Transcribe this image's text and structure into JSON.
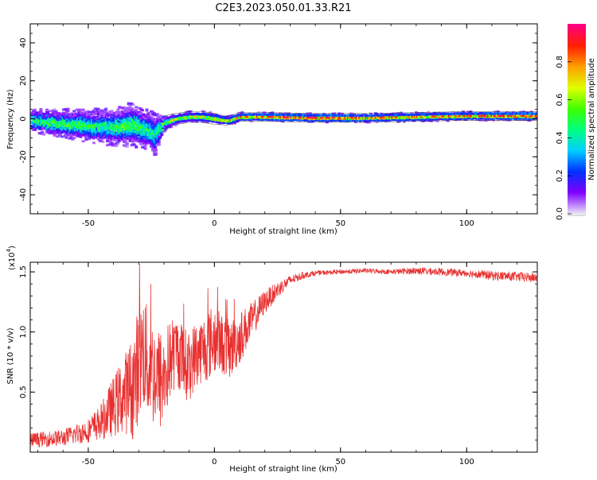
{
  "title": "C2E3.2023.050.01.33.R21",
  "chart_data": [
    {
      "type": "heatmap",
      "xlabel": "Height of straight line (km)",
      "ylabel": "Frequency (Hz)",
      "xlim": [
        -73,
        128
      ],
      "ylim": [
        -50,
        50
      ],
      "xticks": [
        -50,
        0,
        50,
        100
      ],
      "yticks": [
        -40,
        -20,
        0,
        20,
        40
      ],
      "colorbar": {
        "label": "Normalized spectral amplitude",
        "range": [
          0,
          1
        ],
        "ticks": [
          "0.0",
          "0.2",
          "0.4",
          "0.6",
          "0.8"
        ],
        "colors": [
          "#e8e0f8",
          "#8000ff",
          "#0030ff",
          "#00d0ff",
          "#00ff80",
          "#40ff00",
          "#e0ff00",
          "#ffa000",
          "#ff2000",
          "#ff0080"
        ]
      },
      "ridge": {
        "x": [
          -73,
          -65,
          -55,
          -45,
          -38,
          -33,
          -28,
          -24,
          -20,
          -15,
          -10,
          -5,
          0,
          5,
          10,
          20,
          40,
          60,
          80,
          100,
          128
        ],
        "center": [
          -1,
          -2,
          -3,
          -4,
          -4,
          -3,
          -5,
          -8,
          -2,
          0,
          1,
          1,
          0,
          -1,
          1,
          1,
          0.5,
          0.5,
          1,
          1.5,
          1.5
        ],
        "spread": [
          5,
          6,
          7,
          8,
          9,
          10,
          9,
          10,
          3,
          2.5,
          2.5,
          2.5,
          2.5,
          2,
          2,
          2,
          2,
          2,
          2,
          2,
          2
        ],
        "amplitude": [
          0.45,
          0.5,
          0.5,
          0.45,
          0.5,
          0.55,
          0.45,
          0.4,
          0.55,
          0.55,
          0.6,
          0.6,
          0.6,
          0.65,
          0.7,
          0.75,
          0.8,
          0.75,
          0.7,
          0.75,
          0.85
        ]
      }
    },
    {
      "type": "line",
      "xlabel": "Height of straight line (km)",
      "ylabel": "SNR (10 * v/v)",
      "y_multiplier": "(x10",
      "y_multiplier_exp": "4",
      "y_multiplier_close": ")",
      "xlim": [
        -73,
        128
      ],
      "ylim": [
        0,
        1.58
      ],
      "xticks": [
        -50,
        0,
        50,
        100
      ],
      "yticks": [
        "0.5",
        "1.0",
        "1.5"
      ],
      "color": "#e83030",
      "series": [
        {
          "x": [
            -73,
            -60,
            -50,
            -45,
            -40,
            -35,
            -32,
            -30,
            -28,
            -26,
            -24,
            -22,
            -20,
            -18,
            -15,
            -12,
            -10,
            -8,
            -5,
            -2,
            0,
            3,
            6,
            10,
            15,
            20,
            25,
            30,
            35,
            40,
            50,
            60,
            70,
            80,
            90,
            100,
            110,
            120,
            128
          ],
          "y": [
            0.1,
            0.12,
            0.18,
            0.25,
            0.38,
            0.5,
            0.55,
            0.75,
            0.85,
            0.7,
            0.65,
            0.6,
            0.6,
            0.75,
            0.85,
            0.75,
            0.7,
            0.8,
            0.85,
            0.9,
            0.95,
            0.9,
            0.85,
            0.95,
            1.1,
            1.25,
            1.35,
            1.43,
            1.47,
            1.49,
            1.5,
            1.51,
            1.5,
            1.51,
            1.5,
            1.49,
            1.47,
            1.46,
            1.45
          ],
          "noise": [
            0.06,
            0.07,
            0.1,
            0.15,
            0.25,
            0.35,
            0.45,
            0.5,
            0.5,
            0.45,
            0.45,
            0.45,
            0.4,
            0.35,
            0.3,
            0.3,
            0.3,
            0.28,
            0.28,
            0.3,
            0.3,
            0.25,
            0.25,
            0.22,
            0.15,
            0.1,
            0.07,
            0.04,
            0.03,
            0.02,
            0.02,
            0.02,
            0.02,
            0.03,
            0.03,
            0.03,
            0.04,
            0.04,
            0.04
          ]
        }
      ]
    }
  ]
}
